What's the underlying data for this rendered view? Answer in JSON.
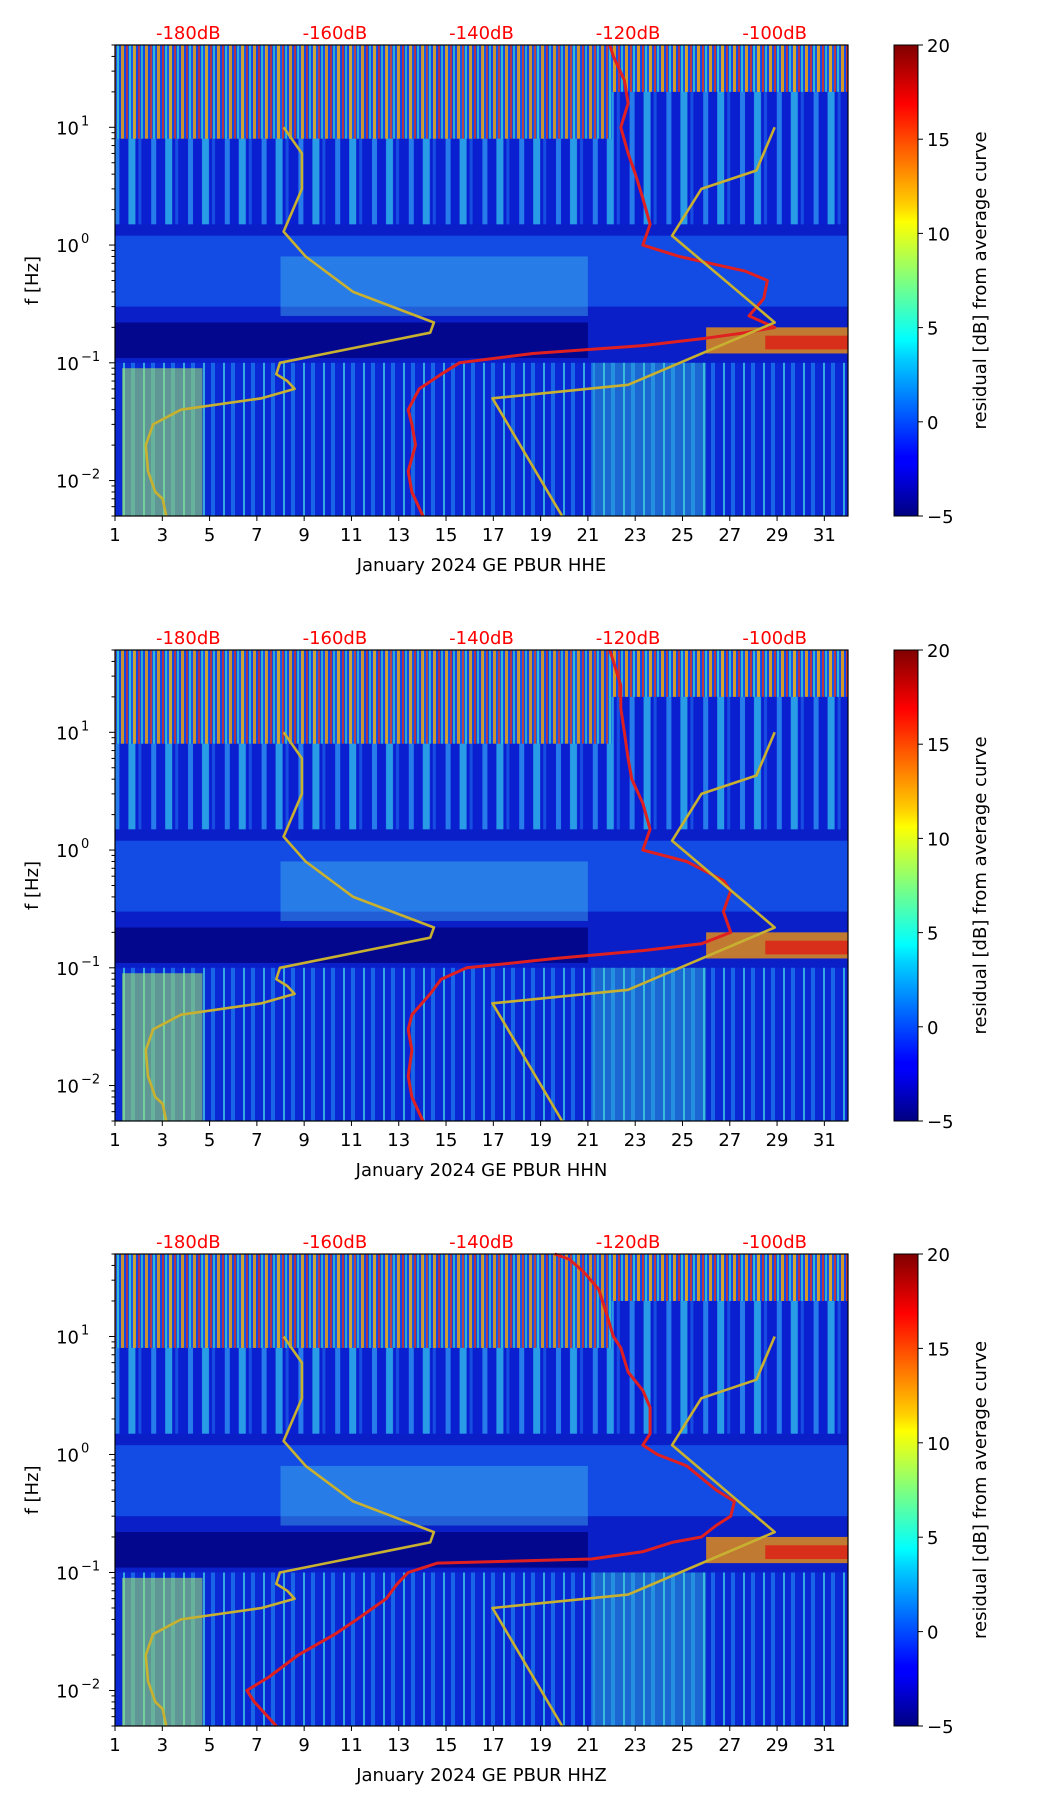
{
  "figure": {
    "colors": {
      "top_db_label": "#ff0000",
      "psd_curve": "#e02020",
      "model_curve": "#c8b030",
      "axis": "#000000"
    }
  },
  "chart_data": [
    {
      "type": "heatmap",
      "title": "",
      "xlabel": "January 2024 GE PBUR  HHE",
      "ylabel": "f [Hz]",
      "colorbar_label": "residual [dB] from average curve",
      "x_ticks": [
        "1",
        "3",
        "5",
        "7",
        "9",
        "11",
        "13",
        "15",
        "17",
        "19",
        "21",
        "23",
        "25",
        "27",
        "29",
        "31"
      ],
      "xlim": [
        1,
        32
      ],
      "y_scale": "log",
      "ylim": [
        0.005,
        50
      ],
      "y_ticks": [
        {
          "value": 0.01,
          "base": "10",
          "exp": "−2"
        },
        {
          "value": 0.1,
          "base": "10",
          "exp": "−1"
        },
        {
          "value": 1,
          "base": "10",
          "exp": "0"
        },
        {
          "value": 10,
          "base": "10",
          "exp": "1"
        }
      ],
      "top_axis_db_labels": [
        "-180dB",
        "-160dB",
        "-140dB",
        "-120dB",
        "-100dB"
      ],
      "top_axis_db_values": [
        -180,
        -160,
        -140,
        -120,
        -100
      ],
      "top_axis_dB_range": [
        -190,
        -90
      ],
      "colorbar_ticks": [
        "20",
        "15",
        "10",
        "5",
        "0",
        "−5"
      ],
      "colorbar_range": [
        -5,
        20
      ],
      "colormap": "jet",
      "series": [
        {
          "color": "#e02020",
          "points_dB_vs_Hz": [
            [
              -148,
              0.005
            ],
            [
              -149.5,
              0.008
            ],
            [
              -150,
              0.012
            ],
            [
              -149,
              0.02
            ],
            [
              -149.5,
              0.03
            ],
            [
              -150,
              0.04
            ],
            [
              -148.5,
              0.06
            ],
            [
              -145.5,
              0.08
            ],
            [
              -143,
              0.1
            ],
            [
              -133,
              0.12
            ],
            [
              -118,
              0.14
            ],
            [
              -110,
              0.16
            ],
            [
              -104,
              0.18
            ],
            [
              -100,
              0.2
            ],
            [
              -103.5,
              0.25
            ],
            [
              -101.5,
              0.35
            ],
            [
              -101,
              0.5
            ],
            [
              -104,
              0.6
            ],
            [
              -113,
              0.8
            ],
            [
              -118,
              1.0
            ],
            [
              -117,
              1.5
            ],
            [
              -118,
              2.5
            ],
            [
              -119,
              4
            ],
            [
              -120,
              6
            ],
            [
              -121,
              10
            ],
            [
              -120,
              16
            ],
            [
              -120.5,
              25
            ],
            [
              -122,
              40
            ],
            [
              -122.5,
              50
            ]
          ]
        },
        {
          "color": "#c8b030",
          "points_dB_vs_Hz": [
            [
              -183,
              0.005
            ],
            [
              -183.5,
              0.007
            ],
            [
              -184.5,
              0.008
            ],
            [
              -185.5,
              0.012
            ],
            [
              -185.8,
              0.02
            ],
            [
              -184.8,
              0.03
            ],
            [
              -181,
              0.04
            ],
            [
              -170,
              0.05
            ],
            [
              -165.5,
              0.06
            ],
            [
              -166.5,
              0.07
            ],
            [
              -168,
              0.08
            ],
            [
              -167.5,
              0.1
            ],
            [
              -147,
              0.18
            ],
            [
              -146.5,
              0.22
            ],
            [
              -157.5,
              0.4
            ],
            [
              -164,
              0.8
            ],
            [
              -167,
              1.3
            ],
            [
              -164.5,
              3
            ],
            [
              -164.5,
              6
            ],
            [
              -167,
              10
            ]
          ]
        },
        {
          "color": "#c8b030",
          "points_dB_vs_Hz": [
            [
              -129,
              0.005
            ],
            [
              -138.5,
              0.05
            ],
            [
              -120,
              0.065
            ],
            [
              -100,
              0.22
            ],
            [
              -114,
              1.2
            ],
            [
              -110,
              3
            ],
            [
              -102.5,
              4.3
            ],
            [
              -100,
              10
            ]
          ]
        }
      ]
    },
    {
      "type": "heatmap",
      "title": "",
      "xlabel": "January 2024 GE PBUR  HHN",
      "ylabel": "f [Hz]",
      "colorbar_label": "residual [dB] from average curve",
      "x_ticks": [
        "1",
        "3",
        "5",
        "7",
        "9",
        "11",
        "13",
        "15",
        "17",
        "19",
        "21",
        "23",
        "25",
        "27",
        "29",
        "31"
      ],
      "xlim": [
        1,
        32
      ],
      "y_scale": "log",
      "ylim": [
        0.005,
        50
      ],
      "y_ticks": [
        {
          "value": 0.01,
          "base": "10",
          "exp": "−2"
        },
        {
          "value": 0.1,
          "base": "10",
          "exp": "−1"
        },
        {
          "value": 1,
          "base": "10",
          "exp": "0"
        },
        {
          "value": 10,
          "base": "10",
          "exp": "1"
        }
      ],
      "top_axis_db_labels": [
        "-180dB",
        "-160dB",
        "-140dB",
        "-120dB",
        "-100dB"
      ],
      "top_axis_db_values": [
        -180,
        -160,
        -140,
        -120,
        -100
      ],
      "top_axis_dB_range": [
        -190,
        -90
      ],
      "colorbar_ticks": [
        "20",
        "15",
        "10",
        "5",
        "0",
        "−5"
      ],
      "colorbar_range": [
        -5,
        20
      ],
      "colormap": "jet",
      "series": [
        {
          "color": "#e02020",
          "points_dB_vs_Hz": [
            [
              -148,
              0.005
            ],
            [
              -149.5,
              0.008
            ],
            [
              -150,
              0.012
            ],
            [
              -149.5,
              0.02
            ],
            [
              -150,
              0.03
            ],
            [
              -149.5,
              0.04
            ],
            [
              -147,
              0.06
            ],
            [
              -145.5,
              0.08
            ],
            [
              -142,
              0.1
            ],
            [
              -130,
              0.12
            ],
            [
              -118,
              0.14
            ],
            [
              -110,
              0.16
            ],
            [
              -106,
              0.2
            ],
            [
              -107,
              0.3
            ],
            [
              -106,
              0.45
            ],
            [
              -107,
              0.55
            ],
            [
              -112,
              0.8
            ],
            [
              -118,
              1.0
            ],
            [
              -117,
              1.5
            ],
            [
              -118,
              2.5
            ],
            [
              -119.5,
              4
            ],
            [
              -120,
              6
            ],
            [
              -120.5,
              10
            ],
            [
              -121,
              16
            ],
            [
              -121,
              25
            ],
            [
              -122,
              40
            ],
            [
              -122.5,
              50
            ]
          ]
        },
        {
          "color": "#c8b030",
          "points_dB_vs_Hz": [
            [
              -183,
              0.005
            ],
            [
              -183.5,
              0.007
            ],
            [
              -184.5,
              0.008
            ],
            [
              -185.5,
              0.012
            ],
            [
              -185.8,
              0.02
            ],
            [
              -184.8,
              0.03
            ],
            [
              -181,
              0.04
            ],
            [
              -170,
              0.05
            ],
            [
              -165.5,
              0.06
            ],
            [
              -166.5,
              0.07
            ],
            [
              -168,
              0.08
            ],
            [
              -167.5,
              0.1
            ],
            [
              -147,
              0.18
            ],
            [
              -146.5,
              0.22
            ],
            [
              -157.5,
              0.4
            ],
            [
              -164,
              0.8
            ],
            [
              -167,
              1.3
            ],
            [
              -164.5,
              3
            ],
            [
              -164.5,
              6
            ],
            [
              -167,
              10
            ]
          ]
        },
        {
          "color": "#c8b030",
          "points_dB_vs_Hz": [
            [
              -129,
              0.005
            ],
            [
              -138.5,
              0.05
            ],
            [
              -120,
              0.065
            ],
            [
              -100,
              0.22
            ],
            [
              -114,
              1.2
            ],
            [
              -110,
              3
            ],
            [
              -102.5,
              4.3
            ],
            [
              -100,
              10
            ]
          ]
        }
      ]
    },
    {
      "type": "heatmap",
      "title": "",
      "xlabel": "January 2024 GE PBUR  HHZ",
      "ylabel": "f [Hz]",
      "colorbar_label": "residual [dB] from average curve",
      "x_ticks": [
        "1",
        "3",
        "5",
        "7",
        "9",
        "11",
        "13",
        "15",
        "17",
        "19",
        "21",
        "23",
        "25",
        "27",
        "29",
        "31"
      ],
      "xlim": [
        1,
        32
      ],
      "y_scale": "log",
      "ylim": [
        0.005,
        50
      ],
      "y_ticks": [
        {
          "value": 0.01,
          "base": "10",
          "exp": "−2"
        },
        {
          "value": 0.1,
          "base": "10",
          "exp": "−1"
        },
        {
          "value": 1,
          "base": "10",
          "exp": "0"
        },
        {
          "value": 10,
          "base": "10",
          "exp": "1"
        }
      ],
      "top_axis_db_labels": [
        "-180dB",
        "-160dB",
        "-140dB",
        "-120dB",
        "-100dB"
      ],
      "top_axis_db_values": [
        -180,
        -160,
        -140,
        -120,
        -100
      ],
      "top_axis_dB_range": [
        -190,
        -90
      ],
      "colorbar_ticks": [
        "20",
        "15",
        "10",
        "5",
        "0",
        "−5"
      ],
      "colorbar_range": [
        -5,
        20
      ],
      "colormap": "jet",
      "series": [
        {
          "color": "#e02020",
          "points_dB_vs_Hz": [
            [
              -168,
              0.005
            ],
            [
              -171,
              0.008
            ],
            [
              -172,
              0.01
            ],
            [
              -169,
              0.013
            ],
            [
              -165,
              0.02
            ],
            [
              -160,
              0.03
            ],
            [
              -157,
              0.04
            ],
            [
              -153,
              0.06
            ],
            [
              -151.5,
              0.08
            ],
            [
              -150,
              0.1
            ],
            [
              -146,
              0.12
            ],
            [
              -125,
              0.13
            ],
            [
              -118,
              0.15
            ],
            [
              -114,
              0.18
            ],
            [
              -110,
              0.2
            ],
            [
              -108,
              0.25
            ],
            [
              -106,
              0.3
            ],
            [
              -105.5,
              0.4
            ],
            [
              -108,
              0.5
            ],
            [
              -112,
              0.8
            ],
            [
              -116,
              1.0
            ],
            [
              -118,
              1.2
            ],
            [
              -117,
              1.5
            ],
            [
              -117,
              2.5
            ],
            [
              -118,
              3.5
            ],
            [
              -120,
              5
            ],
            [
              -121,
              8
            ],
            [
              -122,
              10
            ],
            [
              -123,
              16
            ],
            [
              -124,
              25
            ],
            [
              -126,
              35
            ],
            [
              -128,
              45
            ],
            [
              -130,
              50
            ]
          ]
        },
        {
          "color": "#c8b030",
          "points_dB_vs_Hz": [
            [
              -183,
              0.005
            ],
            [
              -183.5,
              0.007
            ],
            [
              -184.5,
              0.008
            ],
            [
              -185.5,
              0.012
            ],
            [
              -185.8,
              0.02
            ],
            [
              -184.8,
              0.03
            ],
            [
              -181,
              0.04
            ],
            [
              -170,
              0.05
            ],
            [
              -165.5,
              0.06
            ],
            [
              -166.5,
              0.07
            ],
            [
              -168,
              0.08
            ],
            [
              -167.5,
              0.1
            ],
            [
              -147,
              0.18
            ],
            [
              -146.5,
              0.22
            ],
            [
              -157.5,
              0.4
            ],
            [
              -164,
              0.8
            ],
            [
              -167,
              1.3
            ],
            [
              -164.5,
              3
            ],
            [
              -164.5,
              6
            ],
            [
              -167,
              10
            ]
          ]
        },
        {
          "color": "#c8b030",
          "points_dB_vs_Hz": [
            [
              -129,
              0.005
            ],
            [
              -138.5,
              0.05
            ],
            [
              -120,
              0.065
            ],
            [
              -100,
              0.22
            ],
            [
              -114,
              1.2
            ],
            [
              -110,
              3
            ],
            [
              -102.5,
              4.3
            ],
            [
              -100,
              10
            ]
          ]
        }
      ]
    }
  ]
}
